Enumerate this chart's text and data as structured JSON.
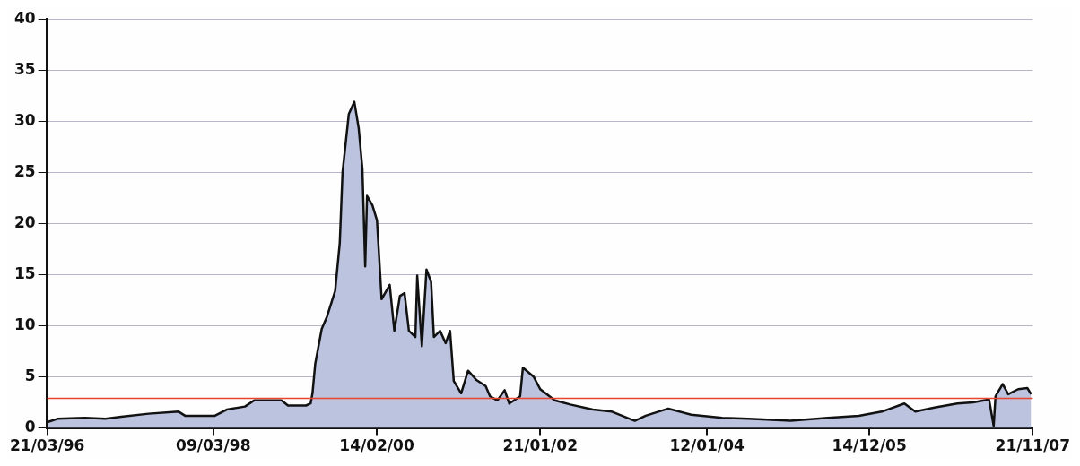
{
  "chart_data": {
    "type": "area",
    "grid": "y",
    "legend": false,
    "marker": "none",
    "line_style": "solid",
    "xlim": [
      "1996-03-21",
      "2007-11-21"
    ],
    "xticks": [
      {
        "value": "1996-03-21",
        "label": "21/03/96"
      },
      {
        "value": "1998-03-09",
        "label": "09/03/98"
      },
      {
        "value": "2000-02-14",
        "label": "14/02/00"
      },
      {
        "value": "2002-01-21",
        "label": "21/01/02"
      },
      {
        "value": "2004-01-12",
        "label": "12/01/04"
      },
      {
        "value": "2005-12-14",
        "label": "14/12/05"
      },
      {
        "value": "2007-11-21",
        "label": "21/11/07"
      }
    ],
    "ylim": [
      0,
      40
    ],
    "yticks": [
      0,
      5,
      10,
      15,
      20,
      25,
      30,
      35,
      40
    ],
    "ref_lines": [
      {
        "axis": "y",
        "value": 2.9,
        "color": "#e8452c"
      }
    ],
    "series": [
      {
        "color": "#bcc3de",
        "x": [
          "1996-03-25",
          "1996-05-04",
          "1996-08-30",
          "1996-11-28",
          "1997-02-04",
          "1997-06-02",
          "1997-10-10",
          "1997-11-07",
          "1998-03-16",
          "1998-05-06",
          "1998-07-24",
          "1998-09-02",
          "1998-12-29",
          "1999-01-26",
          "1999-04-14",
          "1999-05-04",
          "1999-05-12",
          "1999-05-24",
          "1999-06-21",
          "1999-07-14",
          "1999-08-18",
          "1999-09-07",
          "1999-09-19",
          "1999-10-16",
          "1999-11-09",
          "1999-11-28",
          "1999-12-14",
          "1999-12-26",
          "2000-01-03",
          "2000-01-26",
          "2000-02-15",
          "2000-03-06",
          "2000-04-10",
          "2000-04-30",
          "2000-05-24",
          "2000-06-13",
          "2000-07-02",
          "2000-07-30",
          "2000-08-07",
          "2000-08-27",
          "2000-09-16",
          "2000-10-06",
          "2000-10-18",
          "2000-11-14",
          "2000-12-08",
          "2000-12-27",
          "2001-01-12",
          "2001-02-13",
          "2001-03-15",
          "2001-04-20",
          "2001-05-30",
          "2001-06-18",
          "2001-07-20",
          "2001-08-20",
          "2001-09-09",
          "2001-10-26",
          "2001-11-07",
          "2001-12-24",
          "2002-01-21",
          "2002-03-25",
          "2002-05-31",
          "2002-09-06",
          "2002-11-27",
          "2003-03-06",
          "2003-04-22",
          "2003-07-29",
          "2003-11-05",
          "2004-03-18",
          "2004-07-10",
          "2005-01-08",
          "2005-06-18",
          "2005-10-30",
          "2006-02-06",
          "2006-05-15",
          "2006-07-01",
          "2006-09-22",
          "2006-12-30",
          "2007-03-07",
          "2007-05-16",
          "2007-06-05",
          "2007-06-13",
          "2007-07-14",
          "2007-08-07",
          "2007-09-19",
          "2007-10-29",
          "2007-11-14"
        ],
        "values": [
          0.6,
          0.9,
          1.0,
          0.9,
          1.1,
          1.4,
          1.6,
          1.2,
          1.2,
          1.8,
          2.1,
          2.7,
          2.7,
          2.2,
          2.2,
          2.4,
          3.4,
          6.3,
          9.7,
          10.9,
          13.4,
          18.1,
          25.0,
          30.7,
          31.9,
          29.3,
          25.3,
          15.8,
          22.7,
          21.8,
          20.3,
          12.6,
          14.0,
          9.5,
          12.9,
          13.2,
          9.5,
          8.9,
          14.9,
          8.0,
          15.5,
          14.3,
          8.9,
          9.5,
          8.3,
          9.5,
          4.6,
          3.4,
          5.6,
          4.7,
          4.1,
          3.1,
          2.7,
          3.7,
          2.4,
          3.1,
          5.9,
          5.0,
          3.8,
          2.7,
          2.3,
          1.8,
          1.6,
          0.7,
          1.2,
          1.9,
          1.3,
          1.0,
          0.9,
          0.7,
          1.0,
          1.2,
          1.6,
          2.4,
          1.6,
          2.0,
          2.4,
          2.5,
          2.8,
          0.2,
          3.1,
          4.3,
          3.3,
          3.8,
          3.9,
          3.3
        ]
      }
    ]
  }
}
